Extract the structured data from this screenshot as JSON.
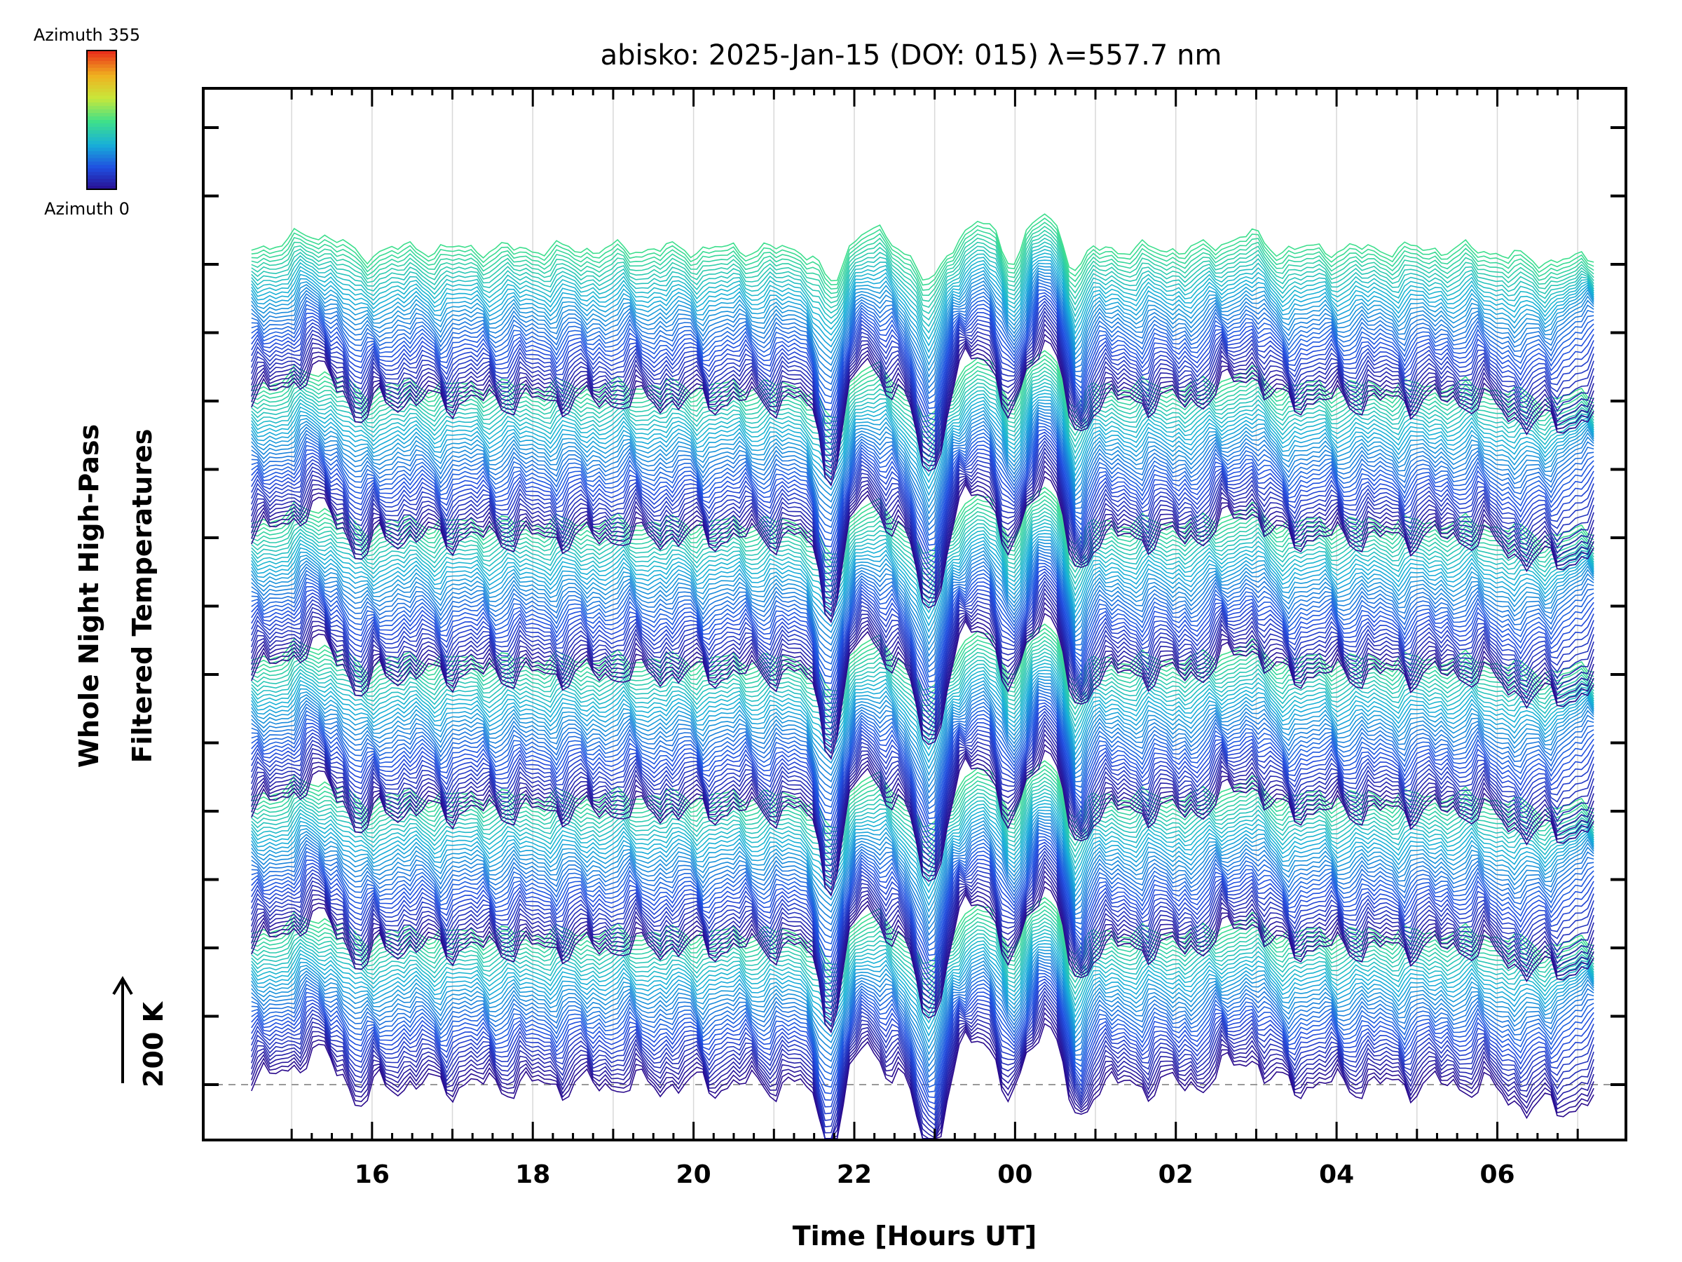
{
  "chart_data": {
    "type": "line",
    "title": "abisko: 2025-Jan-15 (DOY: 015) λ=557.7 nm",
    "xlabel": "Time [Hours UT]",
    "ylabel_line1": "Whole Night High-Pass",
    "ylabel_line2": "Filtered Temperatures",
    "x_tick_labels": [
      "16",
      "18",
      "20",
      "22",
      "00",
      "02",
      "04",
      "06"
    ],
    "x_tick_values_hours_elapsed": [
      16,
      18,
      20,
      22,
      24,
      26,
      28,
      30
    ],
    "xlim_hours_elapsed": [
      13.9,
      31.6
    ],
    "data_time_range_hours_elapsed": [
      14.5,
      31.2
    ],
    "scale_bar": {
      "label": "200 K",
      "value_K": 200
    },
    "colorbar": {
      "label_top": "Azimuth 355",
      "label_bottom": "Azimuth 0",
      "min": 0,
      "max": 355,
      "colormap": [
        "#2a0a8c",
        "#1f4fe0",
        "#18b0d8",
        "#3fe08a",
        "#c8e83a",
        "#f0b020",
        "#e8301a"
      ]
    },
    "series_groups": [
      {
        "name": "",
        "count": 36,
        "offset_steps": 0
      },
      {
        "name": "",
        "count": 36,
        "offset_steps": 1
      },
      {
        "name": "",
        "count": 36,
        "offset_steps": 2
      },
      {
        "name": "",
        "count": 36,
        "offset_steps": 3
      },
      {
        "name": "",
        "count": 36,
        "offset_steps": 4
      },
      {
        "name": "",
        "count": 36,
        "offset_steps": 5
      }
    ],
    "azimuth_step_deg": 5,
    "grid": true,
    "baseline_dashed": true
  }
}
